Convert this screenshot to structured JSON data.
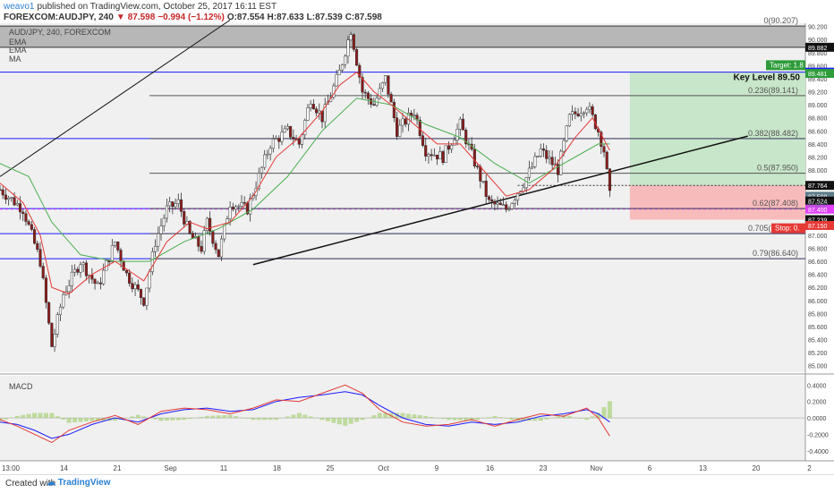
{
  "header": {
    "line1_author": "weavo1",
    "line1_rest": "published on TradingView.com, October 25, 2017 16:11 EST",
    "symbol": "FOREXCOM:AUDJPY, 240",
    "last": "87.598",
    "change": "−0.994 (−1.12%)",
    "open": "O:87.554",
    "high": "H:87.633",
    "low": "L:87.539",
    "close": "C:87.598"
  },
  "legend": {
    "title": "AUD/JPY, 240, FOREXCOM",
    "ind1": "EMA",
    "ind2": "EMA",
    "ind3": "MA"
  },
  "macd_label": "MACD",
  "footer": {
    "created_with": "Created with",
    "brand": "TradingView"
  },
  "colors": {
    "candle_up": "#26a69a",
    "candle_body": "#8b1a1a",
    "ema_fast": "#e53935",
    "ema_slow": "#4caf50",
    "level_blue": "#1a1aff",
    "fib_grey": "#555555",
    "target_zone": "#c8e6c9",
    "stop_zone": "#f8bbbb",
    "label_green": "#2e9c3a",
    "label_red": "#e53935",
    "magenta": "#e040fb"
  },
  "chart_data": [
    {
      "type": "candlestick",
      "title": "AUD/JPY, 240, FOREXCOM",
      "ylim": [
        84.9,
        90.25
      ],
      "x_ticks": [
        "13:00",
        "14",
        "21",
        "Sep",
        "11",
        "18",
        "25",
        "Oct",
        "9",
        "16",
        "23",
        "Nov",
        "6",
        "13",
        "20",
        "2"
      ],
      "y_ticks": [
        "90.200",
        "90.000",
        "89.800",
        "89.600",
        "89.400",
        "89.200",
        "89.000",
        "88.800",
        "88.600",
        "88.400",
        "88.200",
        "88.000",
        "87.800",
        "87.600",
        "87.400",
        "87.200",
        "87.000",
        "86.800",
        "86.600",
        "86.400",
        "86.200",
        "86.000",
        "85.800",
        "85.600",
        "85.400",
        "85.200",
        "85.000"
      ],
      "y_tick_values": [
        90.2,
        90.0,
        89.8,
        89.6,
        89.4,
        89.2,
        89.0,
        88.8,
        88.6,
        88.4,
        88.2,
        88.0,
        87.8,
        87.6,
        87.4,
        87.2,
        87.0,
        86.8,
        86.6,
        86.4,
        86.2,
        86.0,
        85.8,
        85.6,
        85.4,
        85.2,
        85.0
      ],
      "price_path": [
        [
          0,
          87.7
        ],
        [
          4,
          87.4
        ],
        [
          7,
          86.6
        ],
        [
          9,
          85.3
        ],
        [
          11,
          86.1
        ],
        [
          14,
          86.6
        ],
        [
          17,
          86.2
        ],
        [
          20,
          86.9
        ],
        [
          22,
          86.4
        ],
        [
          25,
          86.0
        ],
        [
          27,
          86.9
        ],
        [
          29,
          87.4
        ],
        [
          31,
          87.5
        ],
        [
          33,
          87.0
        ],
        [
          35,
          86.8
        ],
        [
          36,
          87.2
        ],
        [
          38,
          86.7
        ],
        [
          40,
          87.5
        ],
        [
          43,
          87.4
        ],
        [
          47,
          88.4
        ],
        [
          50,
          88.6
        ],
        [
          52,
          88.4
        ],
        [
          54,
          89.1
        ],
        [
          56,
          88.8
        ],
        [
          59,
          89.5
        ],
        [
          61,
          90.15
        ],
        [
          63,
          89.2
        ],
        [
          65,
          89.0
        ],
        [
          67,
          89.4
        ],
        [
          69,
          88.6
        ],
        [
          72,
          88.9
        ],
        [
          74,
          88.3
        ],
        [
          77,
          88.2
        ],
        [
          80,
          88.7
        ],
        [
          83,
          88.0
        ],
        [
          85,
          87.5
        ],
        [
          88,
          87.4
        ],
        [
          91,
          87.8
        ],
        [
          94,
          88.3
        ],
        [
          97,
          88.0
        ],
        [
          99,
          88.8
        ],
        [
          102,
          89.0
        ],
        [
          104,
          88.6
        ],
        [
          105,
          88.3
        ],
        [
          106,
          87.6
        ]
      ],
      "ema_fast_path": [
        [
          0,
          87.8
        ],
        [
          4,
          87.5
        ],
        [
          7,
          87.0
        ],
        [
          9,
          86.2
        ],
        [
          12,
          86.1
        ],
        [
          16,
          86.4
        ],
        [
          20,
          86.6
        ],
        [
          25,
          86.3
        ],
        [
          29,
          86.9
        ],
        [
          33,
          87.2
        ],
        [
          36,
          87.1
        ],
        [
          40,
          87.2
        ],
        [
          44,
          87.6
        ],
        [
          48,
          88.2
        ],
        [
          52,
          88.5
        ],
        [
          56,
          88.9
        ],
        [
          59,
          89.3
        ],
        [
          62,
          89.5
        ],
        [
          65,
          89.2
        ],
        [
          68,
          89.0
        ],
        [
          72,
          88.7
        ],
        [
          76,
          88.4
        ],
        [
          80,
          88.4
        ],
        [
          84,
          88.0
        ],
        [
          88,
          87.6
        ],
        [
          92,
          87.7
        ],
        [
          96,
          88.0
        ],
        [
          100,
          88.5
        ],
        [
          103,
          88.8
        ],
        [
          106,
          88.3
        ]
      ],
      "ema_slow_path": [
        [
          0,
          88.1
        ],
        [
          5,
          87.9
        ],
        [
          9,
          87.2
        ],
        [
          14,
          86.7
        ],
        [
          20,
          86.6
        ],
        [
          26,
          86.6
        ],
        [
          32,
          86.9
        ],
        [
          38,
          87.1
        ],
        [
          44,
          87.4
        ],
        [
          50,
          87.9
        ],
        [
          56,
          88.6
        ],
        [
          62,
          89.1
        ],
        [
          68,
          89.0
        ],
        [
          74,
          88.7
        ],
        [
          80,
          88.5
        ],
        [
          86,
          88.1
        ],
        [
          92,
          87.8
        ],
        [
          98,
          88.1
        ],
        [
          104,
          88.4
        ],
        [
          106,
          88.4
        ]
      ],
      "horizontal_levels": [
        {
          "price": 89.5,
          "color": "#1a1aff"
        },
        {
          "price": 88.482,
          "color": "#1a1aff"
        },
        {
          "price": 87.024,
          "color": "#1a1aff"
        },
        {
          "price": 86.64,
          "color": "#1a1aff"
        },
        {
          "price": 87.408,
          "color": "#1a1aff"
        }
      ],
      "fib_levels": [
        {
          "ratio": "0",
          "price": 90.207,
          "label": "0(90.207)"
        },
        {
          "ratio": "0.236",
          "price": 89.141,
          "label": "0.236(89.141)"
        },
        {
          "ratio": "0.382",
          "price": 88.482,
          "label": "0.382(88.482)"
        },
        {
          "ratio": "0.5",
          "price": 87.95,
          "label": "0.5(87.950)"
        },
        {
          "ratio": "0.62",
          "price": 87.408,
          "label": "0.62(87.408)"
        },
        {
          "ratio": "0.705",
          "price": 87.024,
          "label": "0.705(87.024)"
        },
        {
          "ratio": "0.79",
          "price": 86.64,
          "label": "0.79(86.640)"
        }
      ],
      "resistance_band": [
        89.882,
        90.207
      ],
      "key_level_label": "Key Level 89.50",
      "target_label": "Target: 1.8",
      "stop_label": "Stop: 0.",
      "trade_zone": {
        "entry": 87.764,
        "target": 89.5,
        "stop": 87.239
      },
      "trendline": {
        "from": [
          44,
          86.55
        ],
        "to": [
          130,
          88.52
        ]
      },
      "early_trendline": {
        "from": [
          0,
          87.9
        ],
        "to": [
          40,
          90.3
        ]
      },
      "price_tags": [
        {
          "price": 89.882,
          "label": "89.882",
          "color": "#111111"
        },
        {
          "price": 89.5,
          "label": "89.500",
          "color": "#1a1aff"
        },
        {
          "price": 89.481,
          "label": "89.481",
          "color": "#2e9c3a"
        },
        {
          "price": 87.764,
          "label": "87.764",
          "color": "#111111"
        },
        {
          "price": 87.598,
          "label": "87.598",
          "color": "#607d8b"
        },
        {
          "price": 87.524,
          "label": "87.524",
          "color": "#111111"
        },
        {
          "price": 87.4,
          "label": "87.400",
          "color": "#e040fb"
        },
        {
          "price": 87.239,
          "label": "87.239",
          "color": "#111111"
        },
        {
          "price": 87.15,
          "label": "87.150",
          "color": "#e53935"
        }
      ],
      "countdown_tag": "02:48:37"
    },
    {
      "type": "line",
      "title": "MACD",
      "ylim": [
        -0.5,
        0.48
      ],
      "y_ticks": [
        "0.4000",
        "0.2000",
        "0.0000",
        "-0.2000",
        "-0.4000"
      ],
      "y_tick_values": [
        0.4,
        0.2,
        0.0,
        -0.2,
        -0.4
      ],
      "series": [
        {
          "name": "",
          "color": "#1a1aff",
          "path": [
            [
              0,
              -0.05
            ],
            [
              3,
              -0.08
            ],
            [
              6,
              -0.15
            ],
            [
              9,
              -0.25
            ],
            [
              12,
              -0.2
            ],
            [
              16,
              -0.08
            ],
            [
              20,
              0.0
            ],
            [
              24,
              -0.05
            ],
            [
              28,
              0.05
            ],
            [
              32,
              0.1
            ],
            [
              36,
              0.12
            ],
            [
              40,
              0.08
            ],
            [
              44,
              0.1
            ],
            [
              48,
              0.2
            ],
            [
              52,
              0.25
            ],
            [
              56,
              0.28
            ],
            [
              60,
              0.32
            ],
            [
              63,
              0.28
            ],
            [
              66,
              0.15
            ],
            [
              70,
              0.0
            ],
            [
              74,
              -0.08
            ],
            [
              78,
              -0.1
            ],
            [
              82,
              -0.05
            ],
            [
              86,
              -0.08
            ],
            [
              90,
              -0.05
            ],
            [
              94,
              0.02
            ],
            [
              98,
              0.05
            ],
            [
              102,
              0.1
            ],
            [
              104,
              0.05
            ],
            [
              106,
              -0.05
            ]
          ]
        },
        {
          "name": "",
          "color": "#e53935",
          "path": [
            [
              0,
              -0.02
            ],
            [
              3,
              -0.1
            ],
            [
              6,
              -0.2
            ],
            [
              9,
              -0.3
            ],
            [
              12,
              -0.15
            ],
            [
              16,
              -0.05
            ],
            [
              20,
              0.03
            ],
            [
              24,
              -0.08
            ],
            [
              28,
              0.08
            ],
            [
              32,
              0.12
            ],
            [
              36,
              0.1
            ],
            [
              40,
              0.05
            ],
            [
              44,
              0.12
            ],
            [
              48,
              0.22
            ],
            [
              52,
              0.2
            ],
            [
              56,
              0.3
            ],
            [
              60,
              0.4
            ],
            [
              63,
              0.3
            ],
            [
              66,
              0.1
            ],
            [
              70,
              -0.05
            ],
            [
              74,
              -0.1
            ],
            [
              78,
              -0.08
            ],
            [
              82,
              -0.02
            ],
            [
              86,
              -0.1
            ],
            [
              90,
              -0.02
            ],
            [
              94,
              0.05
            ],
            [
              98,
              0.02
            ],
            [
              102,
              0.12
            ],
            [
              104,
              0.0
            ],
            [
              106,
              -0.22
            ]
          ]
        }
      ]
    }
  ]
}
